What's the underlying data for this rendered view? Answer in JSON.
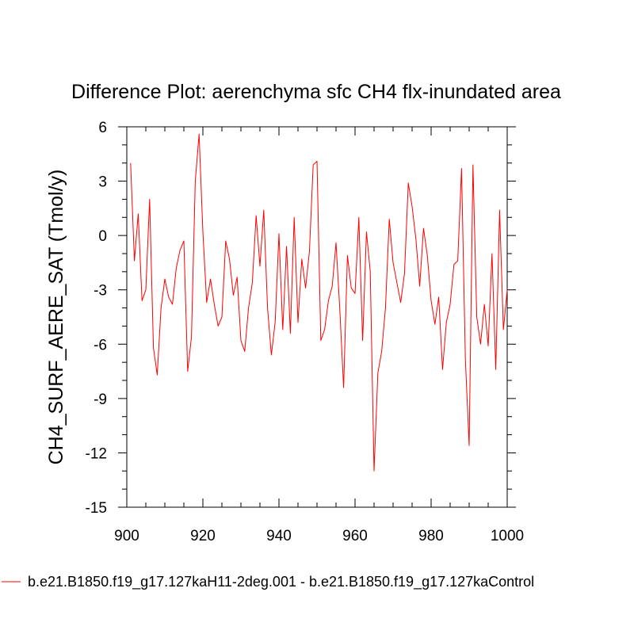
{
  "chart_data": {
    "type": "line",
    "title": "Difference Plot: aerenchyma sfc CH4 flx-inundated area",
    "xlabel": "",
    "ylabel": "CH4_SURF_AERE_SAT  (Tmol/y)",
    "xlim": [
      900,
      1000
    ],
    "ylim": [
      -15,
      6
    ],
    "xticks": [
      900,
      920,
      940,
      960,
      980,
      1000
    ],
    "yticks": [
      -15,
      -12,
      -9,
      -6,
      -3,
      0,
      3,
      6
    ],
    "xtick_labels": [
      "900",
      "920",
      "940",
      "960",
      "980",
      "1000"
    ],
    "ytick_labels": [
      "-15",
      "-12",
      "-9",
      "-6",
      "-3",
      "0",
      "3",
      "6"
    ],
    "grid": false,
    "legend_position": "bottom",
    "series": [
      {
        "name": "b.e21.B1850.f19_g17.127kaH11-2deg.001 - b.e21.B1850.f19_g17.127kaControl",
        "color": "#ff0000",
        "x": [
          901,
          902,
          903,
          904,
          905,
          906,
          907,
          908,
          909,
          910,
          911,
          912,
          913,
          914,
          915,
          916,
          917,
          918,
          919,
          920,
          921,
          922,
          923,
          924,
          925,
          926,
          927,
          928,
          929,
          930,
          931,
          932,
          933,
          934,
          935,
          936,
          937,
          938,
          939,
          940,
          941,
          942,
          943,
          944,
          945,
          946,
          947,
          948,
          949,
          950,
          951,
          952,
          953,
          954,
          955,
          956,
          957,
          958,
          959,
          960,
          961,
          962,
          963,
          964,
          965,
          966,
          967,
          968,
          969,
          970,
          971,
          972,
          973,
          974,
          975,
          976,
          977,
          978,
          979,
          980,
          981,
          982,
          983,
          984,
          985,
          986,
          987,
          988,
          989,
          990,
          991,
          992,
          993,
          994,
          995,
          996,
          997,
          998,
          999,
          1000
        ],
        "values": [
          4.0,
          -1.4,
          1.2,
          -3.6,
          -3.0,
          2.0,
          -6.2,
          -7.7,
          -4.0,
          -2.4,
          -3.4,
          -3.8,
          -1.8,
          -0.8,
          -0.3,
          -7.5,
          -5.6,
          3.0,
          5.6,
          0.2,
          -3.7,
          -2.4,
          -3.8,
          -5.0,
          -4.5,
          -0.3,
          -1.3,
          -3.3,
          -2.3,
          -5.8,
          -6.4,
          -4.0,
          -2.6,
          1.1,
          -1.7,
          1.4,
          -4.0,
          -6.6,
          -4.8,
          0.1,
          -5.2,
          -0.6,
          -5.4,
          1.0,
          -4.8,
          -1.3,
          -2.9,
          -0.9,
          3.9,
          4.1,
          -5.8,
          -5.2,
          -3.6,
          -2.8,
          -0.4,
          -4.1,
          -8.4,
          -1.1,
          -2.9,
          -3.2,
          1.0,
          -5.8,
          0.2,
          -2.0,
          -13.0,
          -7.6,
          -6.4,
          -4.0,
          0.9,
          -1.5,
          -2.6,
          -3.7,
          -2.1,
          2.9,
          1.6,
          -0.2,
          -2.8,
          0.4,
          -1.1,
          -3.6,
          -4.9,
          -3.4,
          -7.4,
          -4.8,
          -3.8,
          -1.6,
          -1.4,
          3.7,
          -6.8,
          -11.6,
          3.9,
          -4.5,
          -6.0,
          -3.8,
          -6.1,
          -1.0,
          -7.4,
          1.4,
          -5.2,
          -3.0
        ]
      }
    ]
  }
}
